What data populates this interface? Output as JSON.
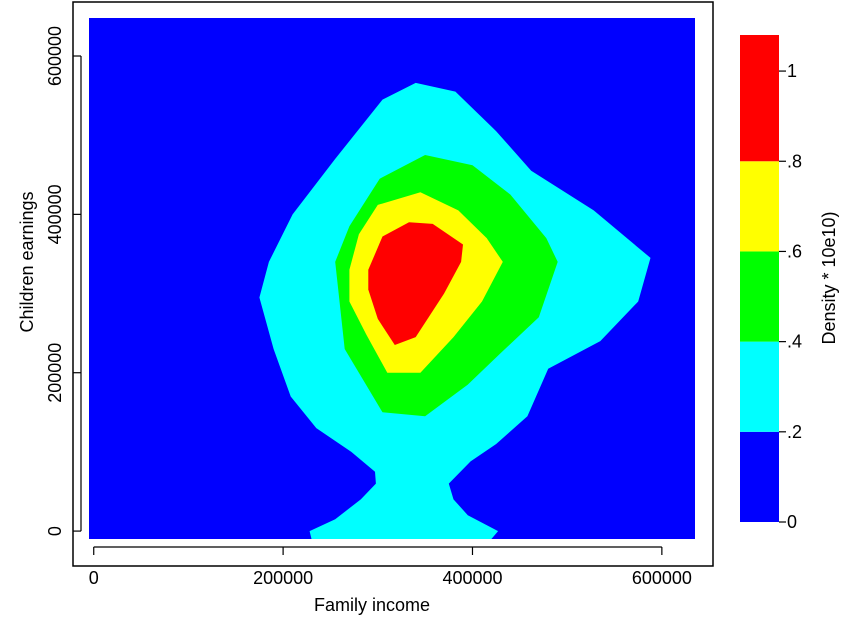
{
  "chart_data": {
    "type": "contour",
    "title": "",
    "xlabel": "Family income",
    "ylabel": "Children earnings",
    "xlim": [
      -5000,
      635000
    ],
    "ylim": [
      -10000,
      648000
    ],
    "x_ticks": [
      {
        "value": 0,
        "label": "0"
      },
      {
        "value": 200000,
        "label": "200000"
      },
      {
        "value": 400000,
        "label": "400000"
      },
      {
        "value": 600000,
        "label": "600000"
      }
    ],
    "y_ticks": [
      {
        "value": 0,
        "label": "0"
      },
      {
        "value": 200000,
        "label": "200000"
      },
      {
        "value": 400000,
        "label": "400000"
      },
      {
        "value": 600000,
        "label": "600000"
      }
    ],
    "colorbar": {
      "label": "Density * 10e10)",
      "range": [
        0,
        1.08
      ],
      "ticks": [
        {
          "value": 0,
          "label": "0"
        },
        {
          "value": 0.2,
          "label": ".2"
        },
        {
          "value": 0.4,
          "label": ".4"
        },
        {
          "value": 0.6,
          "label": ".6"
        },
        {
          "value": 0.8,
          "label": ".8"
        },
        {
          "value": 1.0,
          "label": "1"
        }
      ],
      "bands": [
        {
          "from": 0,
          "to": 0.2,
          "color": "#0000ff"
        },
        {
          "from": 0.2,
          "to": 0.4,
          "color": "#00ffff"
        },
        {
          "from": 0.4,
          "to": 0.6,
          "color": "#00ff00"
        },
        {
          "from": 0.6,
          "to": 0.8,
          "color": "#ffff00"
        },
        {
          "from": 0.8,
          "to": 1.08,
          "color": "#ff0000"
        }
      ]
    },
    "background_color": "#0000ff",
    "regions": [
      {
        "level": 0.2,
        "color": "#00ffff",
        "polygon": [
          [
            230000,
            -10000
          ],
          [
            228000,
            0
          ],
          [
            255000,
            15000
          ],
          [
            282000,
            40000
          ],
          [
            298000,
            60000
          ],
          [
            297000,
            75000
          ],
          [
            272000,
            100000
          ],
          [
            235000,
            130000
          ],
          [
            208000,
            170000
          ],
          [
            190000,
            230000
          ],
          [
            175000,
            295000
          ],
          [
            185000,
            340000
          ],
          [
            210000,
            400000
          ],
          [
            255000,
            470000
          ],
          [
            305000,
            545000
          ],
          [
            340000,
            566000
          ],
          [
            382000,
            555000
          ],
          [
            425000,
            505000
          ],
          [
            462000,
            455000
          ],
          [
            528000,
            405000
          ],
          [
            588000,
            345000
          ],
          [
            575000,
            290000
          ],
          [
            535000,
            240000
          ],
          [
            480000,
            205000
          ],
          [
            458000,
            145000
          ],
          [
            425000,
            110000
          ],
          [
            398000,
            88000
          ],
          [
            375000,
            60000
          ],
          [
            380000,
            40000
          ],
          [
            395000,
            20000
          ],
          [
            427000,
            0
          ],
          [
            420000,
            -10000
          ]
        ]
      },
      {
        "level": 0.4,
        "color": "#00ff00",
        "polygon": [
          [
            255000,
            340000
          ],
          [
            270000,
            385000
          ],
          [
            302000,
            445000
          ],
          [
            350000,
            475000
          ],
          [
            400000,
            462000
          ],
          [
            440000,
            425000
          ],
          [
            478000,
            370000
          ],
          [
            490000,
            340000
          ],
          [
            470000,
            270000
          ],
          [
            430000,
            225000
          ],
          [
            395000,
            185000
          ],
          [
            350000,
            145000
          ],
          [
            305000,
            150000
          ],
          [
            265000,
            230000
          ]
        ]
      },
      {
        "level": 0.6,
        "color": "#ffff00",
        "polygon": [
          [
            270000,
            330000
          ],
          [
            280000,
            375000
          ],
          [
            300000,
            412000
          ],
          [
            345000,
            428000
          ],
          [
            385000,
            405000
          ],
          [
            415000,
            370000
          ],
          [
            432000,
            340000
          ],
          [
            410000,
            290000
          ],
          [
            380000,
            245000
          ],
          [
            345000,
            200000
          ],
          [
            310000,
            200000
          ],
          [
            288000,
            248000
          ],
          [
            270000,
            290000
          ]
        ]
      },
      {
        "level": 0.8,
        "color": "#ff0000",
        "polygon": [
          [
            290000,
            330000
          ],
          [
            305000,
            372000
          ],
          [
            333000,
            390000
          ],
          [
            358000,
            388000
          ],
          [
            390000,
            362000
          ],
          [
            388000,
            340000
          ],
          [
            370000,
            300000
          ],
          [
            340000,
            245000
          ],
          [
            318000,
            235000
          ],
          [
            300000,
            268000
          ],
          [
            290000,
            305000
          ]
        ]
      }
    ]
  }
}
